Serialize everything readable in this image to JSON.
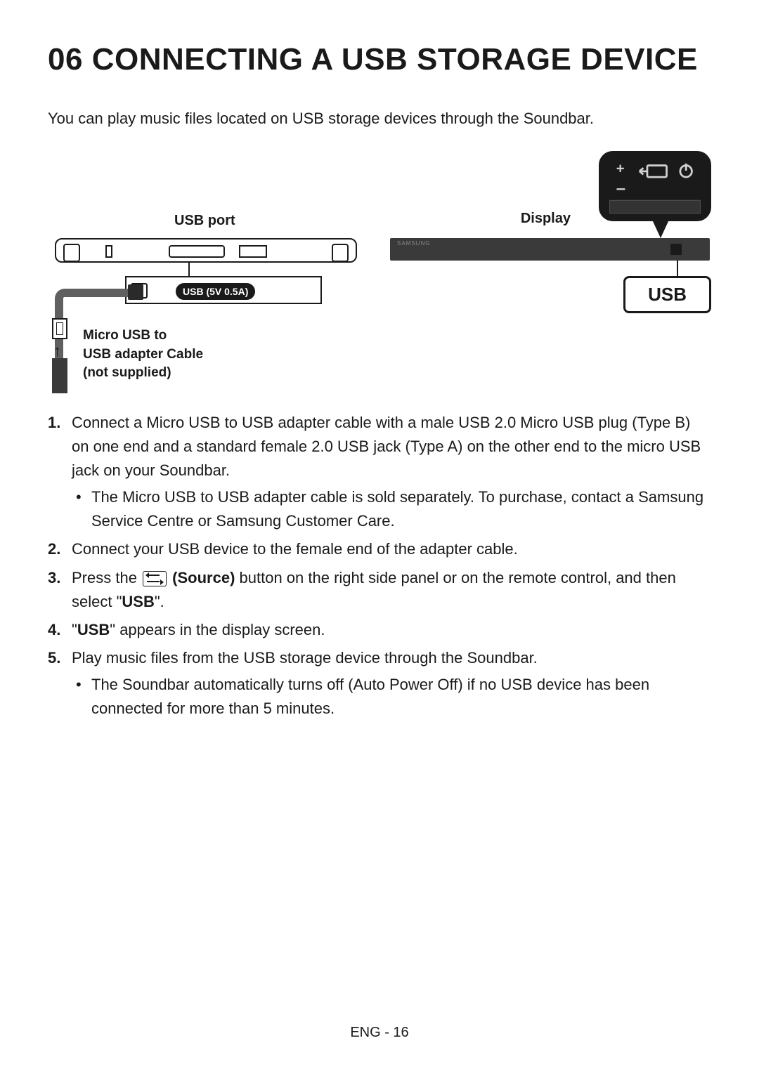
{
  "heading_number": "06",
  "heading_text": "CONNECTING A USB STORAGE DEVICE",
  "intro": "You can play music files located on USB storage devices through the Soundbar.",
  "diagram": {
    "usb_port_label": "USB port",
    "usb_spec_badge": "USB (5V 0.5A)",
    "cable_label_line1": "Micro USB to",
    "cable_label_line2": "USB adapter Cable",
    "cable_label_line3": "(not supplied)",
    "display_label": "Display",
    "usb_badge": "USB",
    "brand": "SAMSUNG",
    "panel_plus": "+",
    "panel_minus": "–",
    "colors": {
      "line": "#1a1a1a",
      "cable": "#606060",
      "soundbar_front": "#3a3a3a",
      "panel_bg": "#1a1a1a",
      "panel_symbol": "#d0d0d0"
    }
  },
  "steps": [
    {
      "text_parts": [
        {
          "t": "Connect a Micro USB to USB adapter cable with a male USB 2.0 Micro USB plug (Type B) on one end and a standard female 2.0 USB jack (Type A) on the other end to the micro USB jack on your Soundbar."
        }
      ],
      "bullets": [
        "The Micro USB to USB adapter cable is sold separately. To purchase, contact a Samsung Service Centre or Samsung Customer Care."
      ]
    },
    {
      "text_parts": [
        {
          "t": "Connect your USB device to the female end of the adapter cable."
        }
      ]
    },
    {
      "text_parts": [
        {
          "t": "Press the "
        },
        {
          "icon": "source"
        },
        {
          "t": " (Source)",
          "bold": true
        },
        {
          "t": " button on the right side panel or on the remote control, and then select \""
        },
        {
          "t": "USB",
          "bold": true
        },
        {
          "t": "\"."
        }
      ]
    },
    {
      "text_parts": [
        {
          "t": "\""
        },
        {
          "t": "USB",
          "bold": true
        },
        {
          "t": "\" appears in the display screen."
        }
      ]
    },
    {
      "text_parts": [
        {
          "t": "Play music files from the USB storage device through the Soundbar."
        }
      ],
      "bullets": [
        "The Soundbar automatically turns off (Auto Power Off) if no USB device has been connected for more than 5 minutes."
      ]
    }
  ],
  "footer": "ENG - 16"
}
